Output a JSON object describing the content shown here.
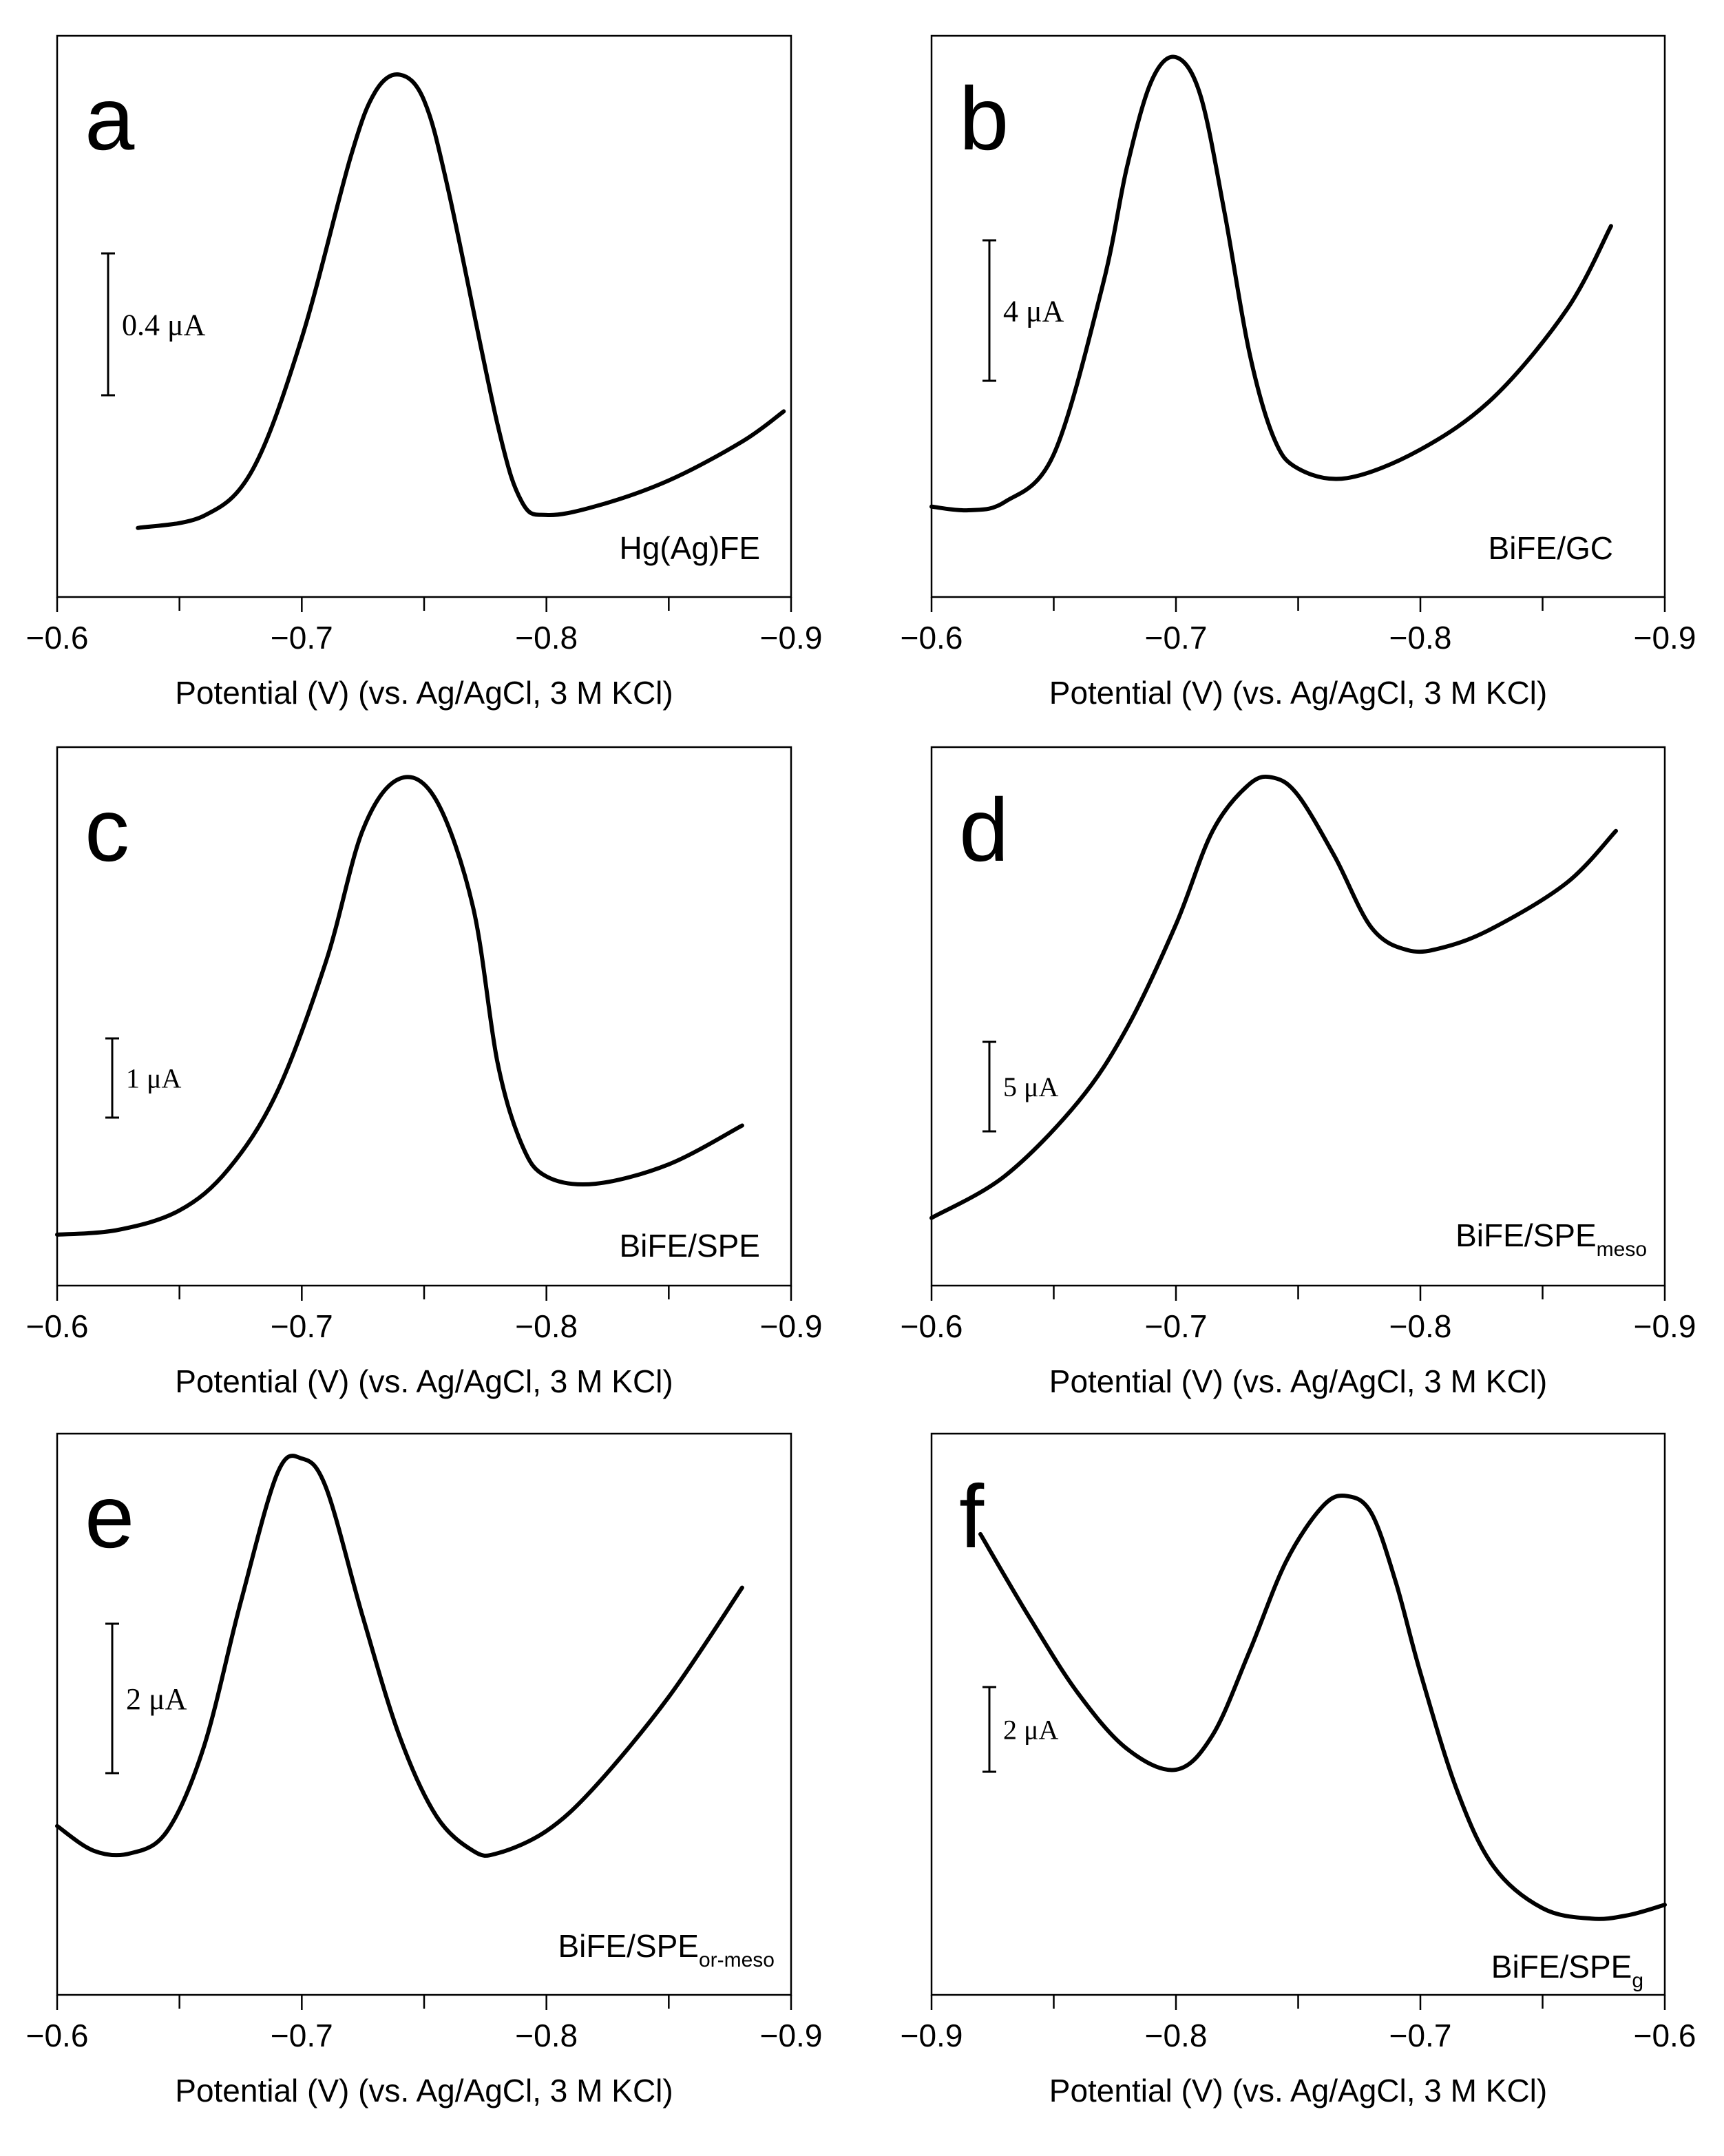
{
  "chart_data": [
    {
      "id": "a",
      "type": "line",
      "panel_label": "a",
      "electrode_label": "Hg(Ag)FE",
      "electrode_subscript": "",
      "xlabel": "Potential (V) (vs. Ag/AgCl, 3 M KCl)",
      "ylabel": "",
      "xlim": [
        -0.6,
        -0.9
      ],
      "x_ticks": [
        -0.6,
        -0.7,
        -0.8,
        -0.9
      ],
      "x_tick_labels": [
        "−0.6",
        "−0.7",
        "−0.8",
        "−0.9"
      ],
      "x_minor_step": 0.05,
      "scale_bar": {
        "label": "0.4 μA",
        "value_uA": 0.4
      },
      "series": [
        {
          "name": "Hg(Ag)FE",
          "x": [
            -0.633,
            -0.66,
            -0.68,
            -0.7,
            -0.72,
            -0.73,
            -0.74,
            -0.75,
            -0.76,
            -0.78,
            -0.79,
            -0.8,
            -0.82,
            -0.85,
            -0.88,
            -0.897
          ],
          "y": [
            -2.1,
            -1.96,
            -1.42,
            0.1,
            2.2,
            2.95,
            3.15,
            2.85,
            1.8,
            -0.9,
            -1.8,
            -1.95,
            -1.85,
            -1.55,
            -1.1,
            -0.75
          ]
        }
      ]
    },
    {
      "id": "b",
      "type": "line",
      "panel_label": "b",
      "electrode_label": "BiFE/GC",
      "electrode_subscript": "",
      "xlabel": "Potential (V) (vs. Ag/AgCl, 3 M KCl)",
      "ylabel": "",
      "xlim": [
        -0.6,
        -0.9
      ],
      "x_ticks": [
        -0.6,
        -0.7,
        -0.8,
        -0.9
      ],
      "x_tick_labels": [
        "−0.6",
        "−0.7",
        "−0.8",
        "−0.9"
      ],
      "x_minor_step": 0.05,
      "scale_bar": {
        "label": "4 μA",
        "value_uA": 4
      },
      "series": [
        {
          "name": "BiFE/GC",
          "x": [
            -0.6,
            -0.615,
            -0.63,
            -0.65,
            -0.67,
            -0.68,
            -0.69,
            -0.7,
            -0.71,
            -0.72,
            -0.73,
            -0.74,
            -0.75,
            -0.77,
            -0.8,
            -0.83,
            -0.86,
            -0.878
          ],
          "y": [
            -5.8,
            -5.95,
            -5.6,
            -3.6,
            3.5,
            8.5,
            12.1,
            13.1,
            11.5,
            6.5,
            0.7,
            -2.9,
            -4.2,
            -4.6,
            -3.4,
            -1.2,
            2.5,
            6.0
          ]
        }
      ]
    },
    {
      "id": "c",
      "type": "line",
      "panel_label": "c",
      "electrode_label": "BiFE/SPE",
      "electrode_subscript": "",
      "xlabel": "Potential (V) (vs. Ag/AgCl, 3 M KCl)",
      "ylabel": "",
      "xlim": [
        -0.6,
        -0.9
      ],
      "x_ticks": [
        -0.6,
        -0.7,
        -0.8,
        -0.9
      ],
      "x_tick_labels": [
        "−0.6",
        "−0.7",
        "−0.8",
        "−0.9"
      ],
      "x_minor_step": 0.05,
      "scale_bar": {
        "label": "1 μA",
        "value_uA": 1
      },
      "series": [
        {
          "name": "BiFE/SPE",
          "x": [
            -0.6,
            -0.625,
            -0.65,
            -0.67,
            -0.69,
            -0.71,
            -0.725,
            -0.74,
            -0.755,
            -0.77,
            -0.78,
            -0.79,
            -0.8,
            -0.82,
            -0.85,
            -0.88
          ],
          "y": [
            -6.75,
            -6.65,
            -6.25,
            -5.4,
            -3.8,
            -1.1,
            1.6,
            2.65,
            2.2,
            0.0,
            -3.2,
            -4.9,
            -5.55,
            -5.7,
            -5.3,
            -4.5
          ]
        }
      ]
    },
    {
      "id": "d",
      "type": "line",
      "panel_label": "d",
      "electrode_label": "BiFE/SPE",
      "electrode_subscript": "meso",
      "xlabel": "Potential (V) (vs. Ag/AgCl, 3 M KCl)",
      "ylabel": "",
      "xlim": [
        -0.6,
        -0.9
      ],
      "x_ticks": [
        -0.6,
        -0.7,
        -0.8,
        -0.9
      ],
      "x_tick_labels": [
        "−0.6",
        "−0.7",
        "−0.8",
        "−0.9"
      ],
      "x_minor_step": 0.05,
      "scale_bar": {
        "label": "5 μA",
        "value_uA": 5
      },
      "series": [
        {
          "name": "BiFE/SPE meso",
          "x": [
            -0.6,
            -0.63,
            -0.66,
            -0.68,
            -0.7,
            -0.715,
            -0.73,
            -0.74,
            -0.75,
            -0.765,
            -0.78,
            -0.795,
            -0.81,
            -0.83,
            -0.86,
            -0.88
          ],
          "y": [
            -8.1,
            -6.8,
            -4.5,
            -2.2,
            1.0,
            3.9,
            5.35,
            5.55,
            5.0,
            3.1,
            0.9,
            0.2,
            0.3,
            0.9,
            2.3,
            3.9
          ]
        }
      ]
    },
    {
      "id": "e",
      "type": "line",
      "panel_label": "e",
      "electrode_label": "BiFE/SPE",
      "electrode_subscript": "or-meso",
      "xlabel": "Potential (V) (vs. Ag/AgCl, 3 M KCl)",
      "ylabel": "",
      "xlim": [
        -0.6,
        -0.9
      ],
      "x_ticks": [
        -0.6,
        -0.7,
        -0.8,
        -0.9
      ],
      "x_tick_labels": [
        "−0.6",
        "−0.7",
        "−0.8",
        "−0.9"
      ],
      "x_minor_step": 0.05,
      "scale_bar": {
        "label": "2 μA",
        "value_uA": 2
      },
      "series": [
        {
          "name": "BiFE/SPE or-meso",
          "x": [
            -0.6,
            -0.615,
            -0.63,
            -0.645,
            -0.66,
            -0.675,
            -0.69,
            -0.7,
            -0.71,
            -0.725,
            -0.74,
            -0.755,
            -0.77,
            -0.78,
            -0.8,
            -0.82,
            -0.85,
            -0.88
          ],
          "y": [
            -2.2,
            -2.7,
            -2.75,
            -2.3,
            -0.6,
            2.3,
            4.9,
            5.2,
            4.6,
            2.0,
            -0.4,
            -2.0,
            -2.7,
            -2.75,
            -2.3,
            -1.4,
            0.4,
            2.6
          ]
        }
      ]
    },
    {
      "id": "f",
      "type": "line",
      "panel_label": "f",
      "electrode_label": "BiFE/SPE",
      "electrode_subscript": "g",
      "xlabel": "Potential (V) (vs. Ag/AgCl, 3 M KCl)",
      "ylabel": "",
      "xlim": [
        -0.9,
        -0.6
      ],
      "x_ticks": [
        -0.9,
        -0.8,
        -0.7,
        -0.6
      ],
      "x_tick_labels": [
        "−0.9",
        "−0.8",
        "−0.7",
        "−0.6"
      ],
      "x_minor_step": 0.05,
      "scale_bar": {
        "label": "2 μA",
        "value_uA": 2
      },
      "series": [
        {
          "name": "BiFE/SPE g",
          "x": [
            -0.88,
            -0.86,
            -0.84,
            -0.82,
            -0.8,
            -0.785,
            -0.77,
            -0.755,
            -0.74,
            -0.73,
            -0.72,
            -0.71,
            -0.7,
            -0.685,
            -0.67,
            -0.65,
            -0.63,
            -0.615,
            -0.6
          ],
          "y": [
            3.4,
            2.2,
            1.1,
            0.3,
            0.0,
            0.5,
            1.7,
            3.0,
            3.8,
            3.95,
            3.7,
            2.7,
            1.4,
            -0.3,
            -1.4,
            -2.0,
            -2.15,
            -2.1,
            -1.95
          ]
        }
      ]
    }
  ]
}
